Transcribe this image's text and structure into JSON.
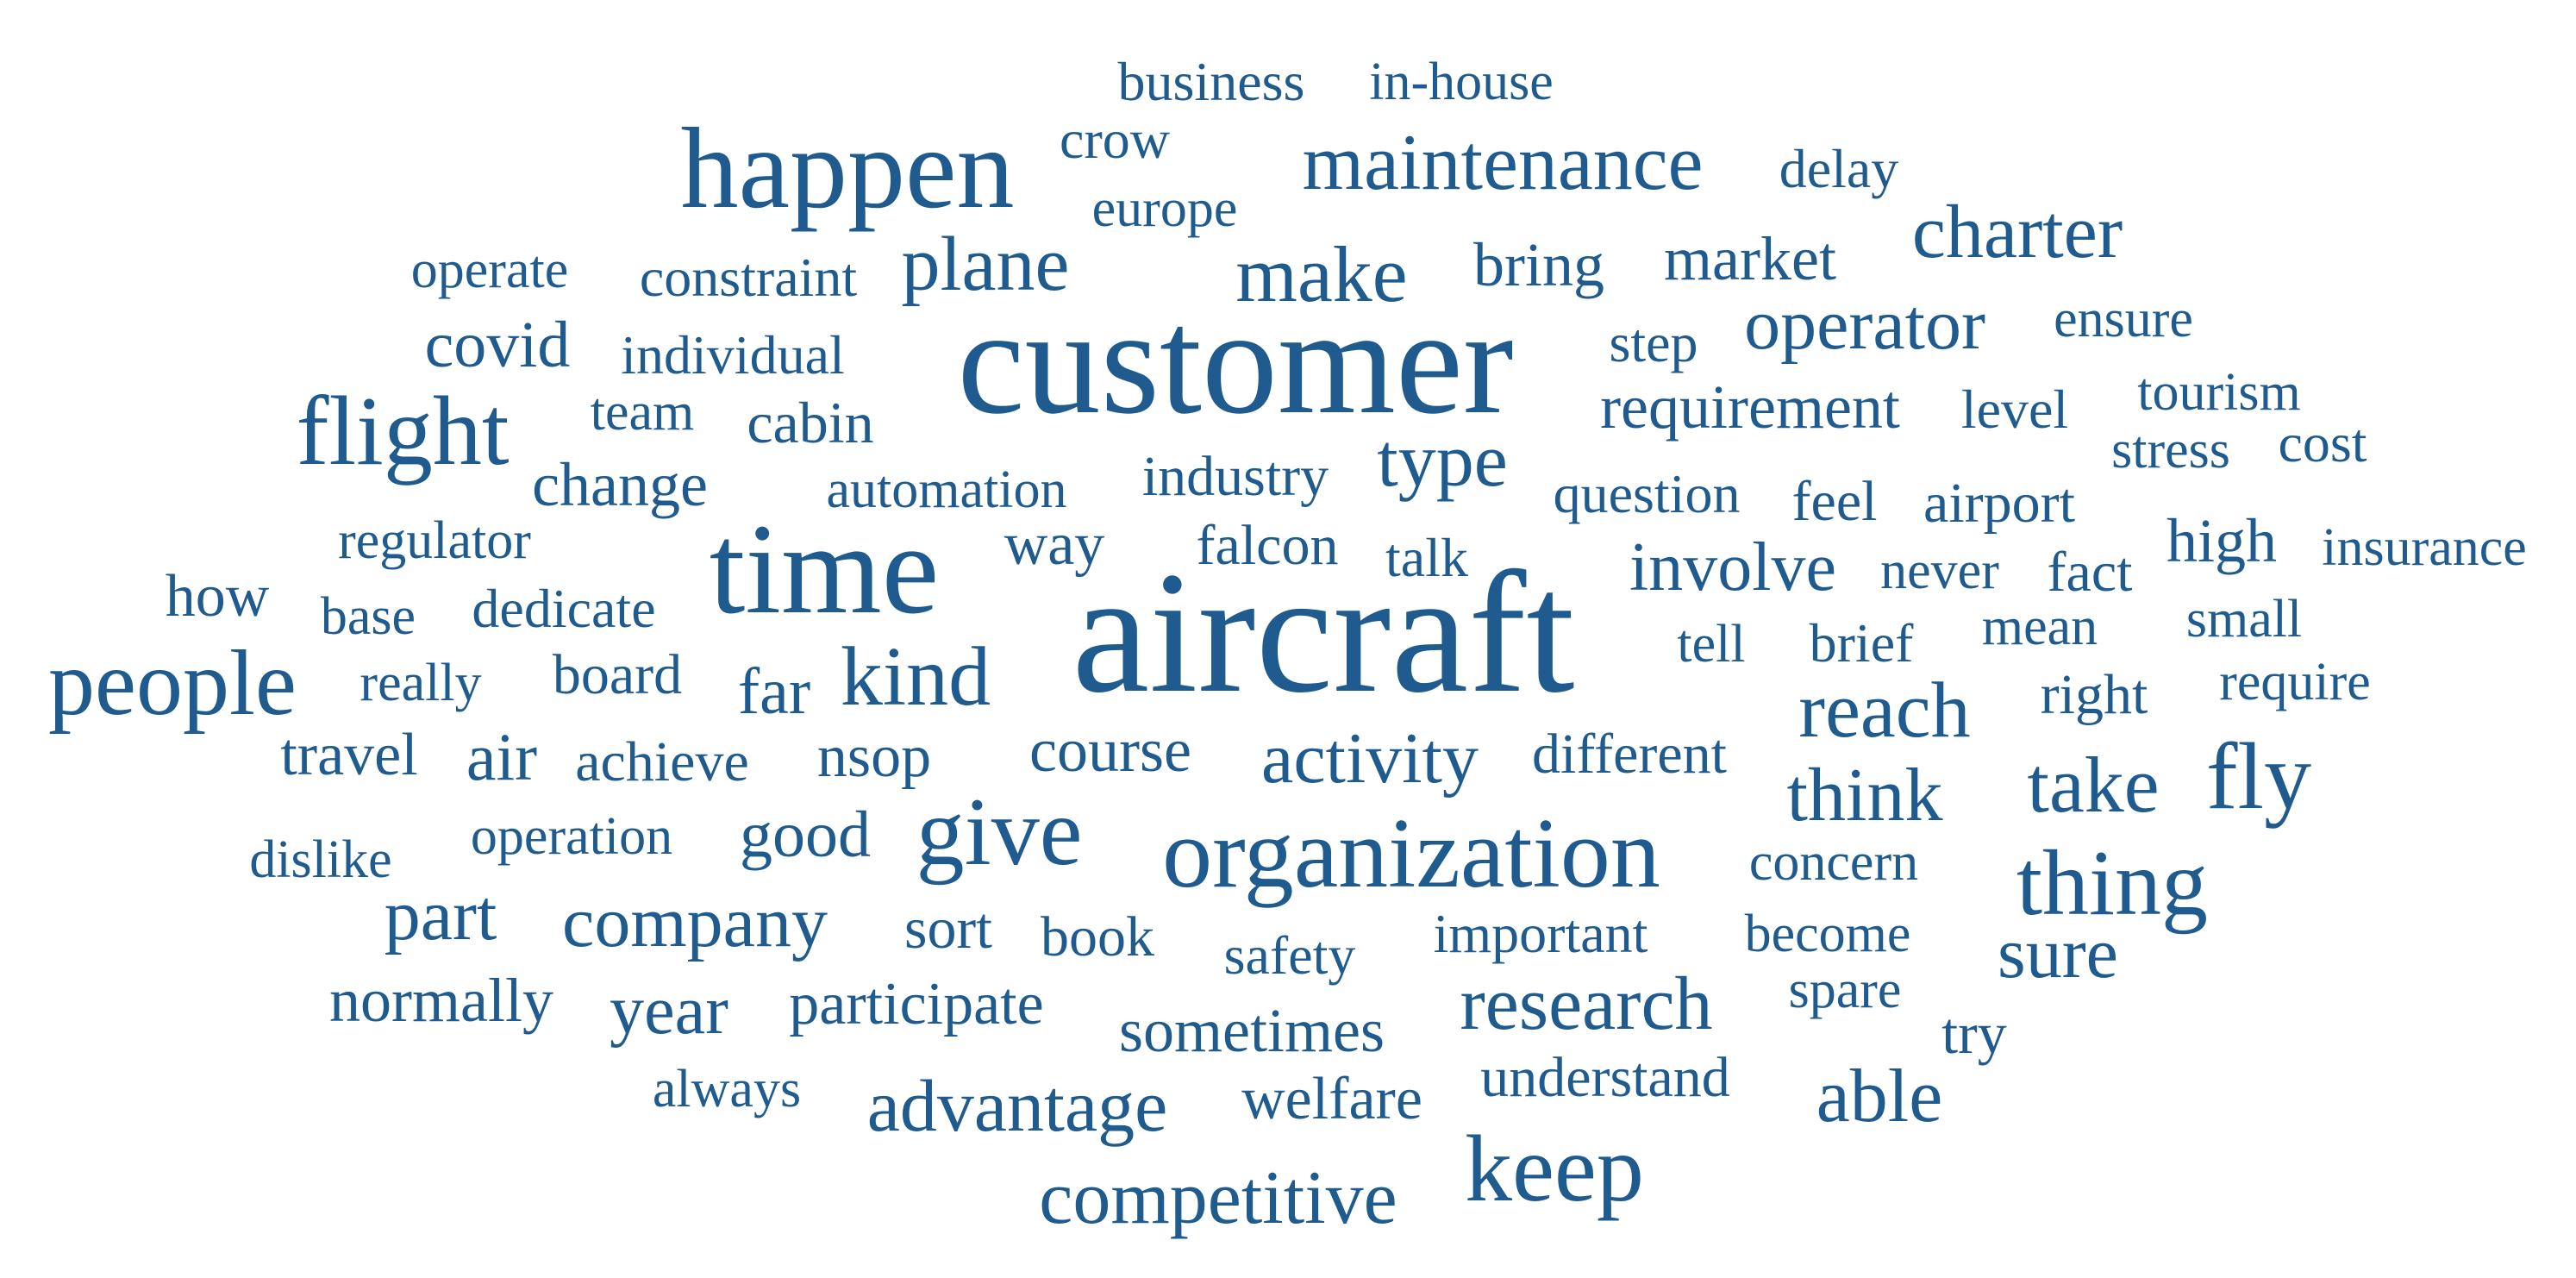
{
  "theme": {
    "word_color": "#1f5b8e",
    "background": "#ffffff"
  },
  "words": [
    {
      "text": "business"
    },
    {
      "text": "in-house"
    },
    {
      "text": "happen"
    },
    {
      "text": "crow"
    },
    {
      "text": "maintenance"
    },
    {
      "text": "delay"
    },
    {
      "text": "europe"
    },
    {
      "text": "charter"
    },
    {
      "text": "operate"
    },
    {
      "text": "constraint"
    },
    {
      "text": "plane"
    },
    {
      "text": "make"
    },
    {
      "text": "bring"
    },
    {
      "text": "market"
    },
    {
      "text": "covid"
    },
    {
      "text": "individual"
    },
    {
      "text": "customer"
    },
    {
      "text": "step"
    },
    {
      "text": "operator"
    },
    {
      "text": "ensure"
    },
    {
      "text": "flight"
    },
    {
      "text": "team"
    },
    {
      "text": "cabin"
    },
    {
      "text": "requirement"
    },
    {
      "text": "level"
    },
    {
      "text": "tourism"
    },
    {
      "text": "stress"
    },
    {
      "text": "cost"
    },
    {
      "text": "change"
    },
    {
      "text": "automation"
    },
    {
      "text": "industry"
    },
    {
      "text": "type"
    },
    {
      "text": "question"
    },
    {
      "text": "feel"
    },
    {
      "text": "airport"
    },
    {
      "text": "regulator"
    },
    {
      "text": "time"
    },
    {
      "text": "way"
    },
    {
      "text": "falcon"
    },
    {
      "text": "talk"
    },
    {
      "text": "involve"
    },
    {
      "text": "never"
    },
    {
      "text": "fact"
    },
    {
      "text": "high"
    },
    {
      "text": "insurance"
    },
    {
      "text": "how"
    },
    {
      "text": "base"
    },
    {
      "text": "dedicate"
    },
    {
      "text": "aircraft"
    },
    {
      "text": "tell"
    },
    {
      "text": "brief"
    },
    {
      "text": "mean"
    },
    {
      "text": "small"
    },
    {
      "text": "people"
    },
    {
      "text": "really"
    },
    {
      "text": "board"
    },
    {
      "text": "far"
    },
    {
      "text": "kind"
    },
    {
      "text": "reach"
    },
    {
      "text": "right"
    },
    {
      "text": "require"
    },
    {
      "text": "travel"
    },
    {
      "text": "air"
    },
    {
      "text": "achieve"
    },
    {
      "text": "nsop"
    },
    {
      "text": "course"
    },
    {
      "text": "activity"
    },
    {
      "text": "different"
    },
    {
      "text": "fly"
    },
    {
      "text": "think"
    },
    {
      "text": "take"
    },
    {
      "text": "dislike"
    },
    {
      "text": "operation"
    },
    {
      "text": "good"
    },
    {
      "text": "give"
    },
    {
      "text": "organization"
    },
    {
      "text": "concern"
    },
    {
      "text": "thing"
    },
    {
      "text": "part"
    },
    {
      "text": "company"
    },
    {
      "text": "sort"
    },
    {
      "text": "book"
    },
    {
      "text": "safety"
    },
    {
      "text": "important"
    },
    {
      "text": "become"
    },
    {
      "text": "sure"
    },
    {
      "text": "normally"
    },
    {
      "text": "year"
    },
    {
      "text": "participate"
    },
    {
      "text": "sometimes"
    },
    {
      "text": "research"
    },
    {
      "text": "spare"
    },
    {
      "text": "try"
    },
    {
      "text": "always"
    },
    {
      "text": "advantage"
    },
    {
      "text": "welfare"
    },
    {
      "text": "understand"
    },
    {
      "text": "able"
    },
    {
      "text": "keep"
    },
    {
      "text": "competitive"
    }
  ]
}
